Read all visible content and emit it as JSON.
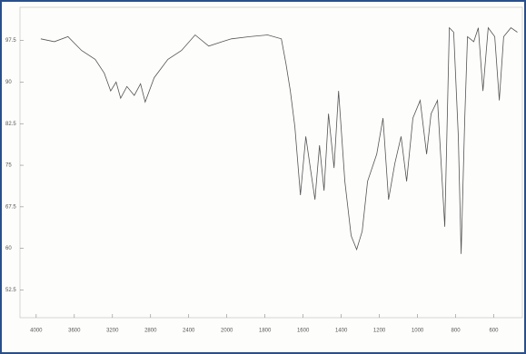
{
  "chart_data": {
    "type": "line",
    "x": [
      3952,
      3810,
      3667,
      3524,
      3381,
      3286,
      3219,
      3162,
      3114,
      3048,
      2971,
      2905,
      2857,
      2762,
      2619,
      2476,
      2333,
      2190,
      2048,
      1976,
      1881,
      1786,
      1714,
      1690,
      1667,
      1643,
      1614,
      1586,
      1562,
      1538,
      1514,
      1490,
      1467,
      1438,
      1414,
      1381,
      1348,
      1319,
      1290,
      1262,
      1214,
      1181,
      1152,
      1119,
      1086,
      1057,
      1024,
      986,
      952,
      929,
      895,
      857,
      833,
      810,
      786,
      771,
      752,
      738,
      705,
      681,
      657,
      629,
      595,
      571,
      548,
      510,
      476
    ],
    "series": [
      {
        "color": "#555555",
        "values": [
          97.8,
          97.3,
          98.2,
          95.7,
          94.1,
          91.6,
          88.4,
          90,
          87.1,
          89.2,
          87.6,
          89.7,
          86.4,
          90.8,
          94.1,
          95.7,
          98.5,
          96.5,
          97.3,
          97.8,
          98.2,
          98.5,
          97.8,
          93.3,
          88.4,
          81.9,
          69.6,
          80.2,
          74.5,
          68.8,
          78.6,
          70.4,
          84.3,
          74.5,
          88.4,
          72.1,
          62.3,
          59.8,
          63.1,
          72.1,
          77,
          83.5,
          68.8,
          75.3,
          80.2,
          72.1,
          83.5,
          86.7,
          77,
          84.3,
          86.7,
          63.9,
          99.8,
          99,
          80.2,
          59,
          83.5,
          98.2,
          97.3,
          99.8,
          88.4,
          99.8,
          98.2,
          86.7,
          98.2,
          99.8,
          99
        ]
      }
    ],
    "xlim": [
      4170,
      450
    ],
    "xticks": [
      4000,
      3600,
      3200,
      2800,
      2400,
      2000,
      1800,
      1600,
      1400,
      1200,
      1000,
      800,
      600
    ],
    "ylim": [
      47.5,
      103.5
    ],
    "yticks": [
      52.5,
      60,
      67.5,
      75,
      82.5,
      90,
      97.5
    ]
  }
}
